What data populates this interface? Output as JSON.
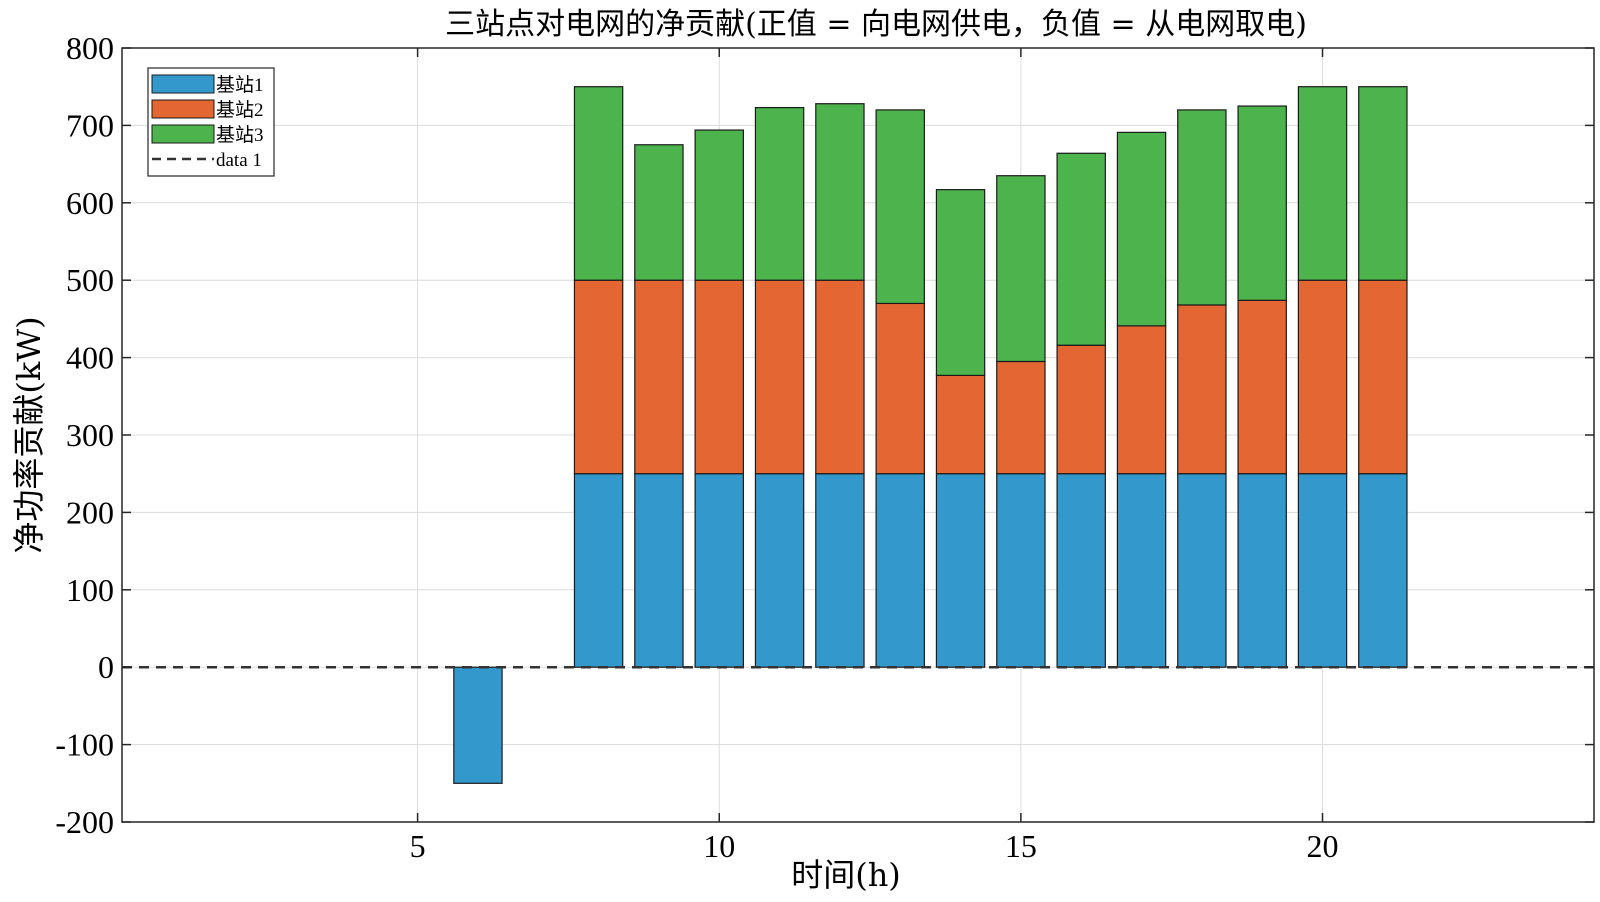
{
  "chart_data": {
    "type": "bar",
    "stacked": true,
    "title": "三站点对电网的净贡献(正值 = 向电网供电，负值 = 从电网取电)",
    "xlabel": "时间(h)",
    "ylabel": "净功率贡献(kW)",
    "xlim": [
      0.1,
      24.5
    ],
    "ylim": [
      -200,
      800
    ],
    "xticks": [
      5,
      10,
      15,
      20
    ],
    "yticks": [
      -200,
      -100,
      0,
      100,
      200,
      300,
      400,
      500,
      600,
      700,
      800
    ],
    "grid": true,
    "legend_position": "top-left",
    "x": [
      1,
      2,
      3,
      4,
      5,
      6,
      7,
      8,
      9,
      10,
      11,
      12,
      13,
      14,
      15,
      16,
      17,
      18,
      19,
      20,
      21,
      22,
      23,
      24
    ],
    "series": [
      {
        "name": "基站1",
        "color": "#3399CC",
        "values": [
          0,
          0,
          0,
          0,
          0,
          -150,
          0,
          250,
          250,
          250,
          250,
          250,
          250,
          250,
          250,
          250,
          250,
          250,
          250,
          250,
          250,
          0,
          0,
          0
        ]
      },
      {
        "name": "基站2",
        "color": "#E46633",
        "values": [
          0,
          0,
          0,
          0,
          0,
          0,
          0,
          250,
          250,
          250,
          250,
          250,
          220,
          127,
          145,
          166,
          191,
          218,
          224,
          250,
          250,
          0,
          0,
          0
        ]
      },
      {
        "name": "基站3",
        "color": "#4DB34D",
        "values": [
          0,
          0,
          0,
          0,
          0,
          0,
          0,
          250,
          175,
          194,
          223,
          228,
          250,
          240,
          240,
          248,
          250,
          252,
          251,
          250,
          250,
          0,
          0,
          0
        ]
      }
    ],
    "reference_line": {
      "name": "data 1",
      "y": 0,
      "style": "dashed",
      "color": "#333333"
    }
  }
}
